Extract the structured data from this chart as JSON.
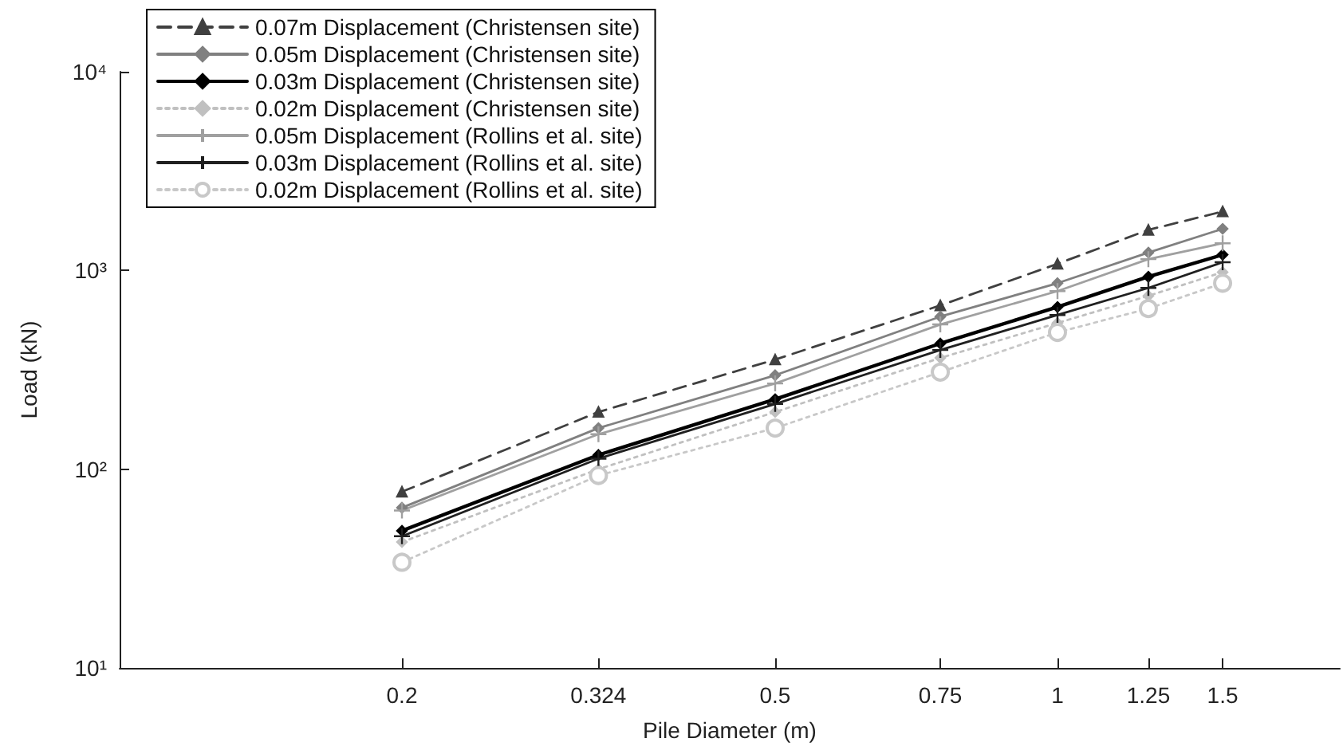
{
  "chart_data": {
    "type": "line",
    "xlabel": "Pile Diameter (m)",
    "ylabel": "Load (kN)",
    "log": "xy",
    "x": [
      0.2,
      0.324,
      0.5,
      0.75,
      1,
      1.25,
      1.5
    ],
    "xlim": [
      0.1,
      2
    ],
    "xticks": [
      0.2,
      0.324,
      0.5,
      0.75,
      1,
      1.25,
      1.5
    ],
    "ylim": [
      10,
      10000
    ],
    "yticks": [
      {
        "value": 10,
        "label": "10¹"
      },
      {
        "value": 100,
        "label": "10²"
      },
      {
        "value": 1000,
        "label": "10³"
      },
      {
        "value": 10000,
        "label": "10⁴"
      }
    ],
    "grid": false,
    "legend": "top left",
    "series": [
      {
        "name": "0.07m Displacement (Christensen site)",
        "color": "#404040",
        "line_style": "dashed",
        "marker": "triangle",
        "values": [
          77,
          194,
          356,
          667,
          1080,
          1600,
          1980
        ]
      },
      {
        "name": "0.05m Displacement (Christensen site)",
        "color": "#808080",
        "line_style": "solid",
        "marker": "diamond",
        "values": [
          64,
          161,
          297,
          586,
          863,
          1230,
          1620
        ]
      },
      {
        "name": "0.03m Displacement (Christensen site)",
        "color": "#000000",
        "line_style": "solid",
        "marker": "diamond",
        "values": [
          49,
          118,
          225,
          429,
          655,
          930,
          1200
        ]
      },
      {
        "name": "0.02m Displacement (Christensen site)",
        "color": "#c0c0c0",
        "line_style": "dotted",
        "marker": "diamond",
        "values": [
          43,
          100,
          194,
          363,
          544,
          745,
          980
        ]
      },
      {
        "name": "0.05m Displacement (Rollins et al. site)",
        "color": "#a0a0a0",
        "line_style": "solid",
        "marker": "cross",
        "values": [
          62,
          150,
          270,
          535,
          787,
          1140,
          1370
        ]
      },
      {
        "name": "0.03m Displacement (Rollins et al. site)",
        "color": "#202020",
        "line_style": "solid",
        "marker": "cross",
        "values": [
          46,
          113,
          213,
          398,
          597,
          817,
          1100
        ]
      },
      {
        "name": "0.02m Displacement (Rollins et al. site)",
        "color": "#c8c8c8",
        "line_style": "dotted",
        "marker": "circle",
        "values": [
          34,
          93,
          161,
          308,
          488,
          643,
          863
        ]
      }
    ]
  }
}
